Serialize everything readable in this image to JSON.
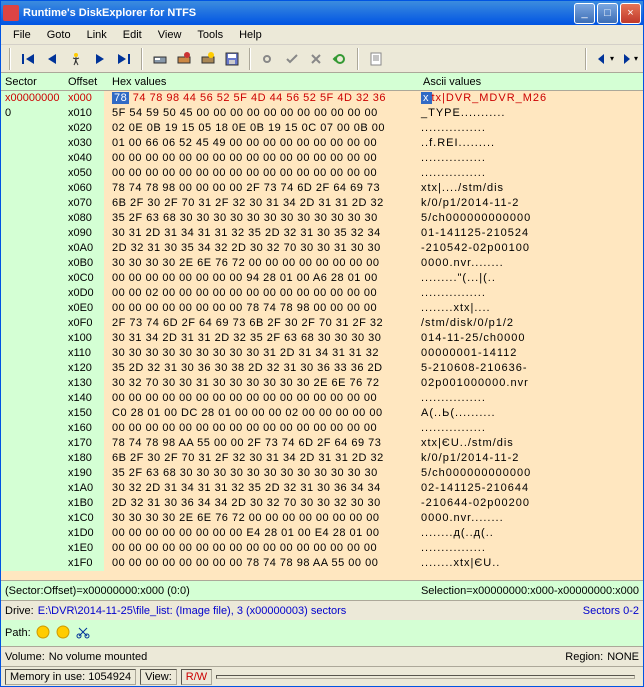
{
  "titlebar": {
    "title": "Runtime's DiskExplorer for NTFS"
  },
  "menu": [
    "File",
    "Goto",
    "Link",
    "Edit",
    "View",
    "Tools",
    "Help"
  ],
  "header": {
    "sector": "Sector",
    "offset": "Offset",
    "hex": "Hex values",
    "ascii": "Ascii values"
  },
  "rows": [
    {
      "sector": "x00000000",
      "offset": "x000",
      "hex_first": "78",
      "hex_rest": " 74 78 98 44 56 52 5F 4D 44 56 52 5F 4D 32 36",
      "ascii_first": "x",
      "ascii_rest": "tx|DVR_MDVR_M26",
      "first": true
    },
    {
      "sector": "0",
      "offset": "x010",
      "hex": "5F 54 59 50 45 00 00 00 00 00 00 00 00 00 00 00",
      "ascii": "_TYPE..........."
    },
    {
      "sector": "",
      "offset": "x020",
      "hex": "02 0E 0B 19 15 05 18 0E 0B 19 15 0C 07 00 0B 00",
      "ascii": "................"
    },
    {
      "sector": "",
      "offset": "x030",
      "hex": "01 00 66 06 52 45 49 00 00 00 00 00 00 00 00 00",
      "ascii": "..f.REI........."
    },
    {
      "sector": "",
      "offset": "x040",
      "hex": "00 00 00 00 00 00 00 00 00 00 00 00 00 00 00 00",
      "ascii": "................"
    },
    {
      "sector": "",
      "offset": "x050",
      "hex": "00 00 00 00 00 00 00 00 00 00 00 00 00 00 00 00",
      "ascii": "................"
    },
    {
      "sector": "",
      "offset": "x060",
      "hex": "78 74 78 98 00 00 00 00 2F 73 74 6D 2F 64 69 73",
      "ascii": "xtx|..../stm/dis"
    },
    {
      "sector": "",
      "offset": "x070",
      "hex": "6B 2F 30 2F 70 31 2F 32 30 31 34 2D 31 31 2D 32",
      "ascii": "k/0/p1/2014-11-2"
    },
    {
      "sector": "",
      "offset": "x080",
      "hex": "35 2F 63 68 30 30 30 30 30 30 30 30 30 30 30 30",
      "ascii": "5/ch000000000000"
    },
    {
      "sector": "",
      "offset": "x090",
      "hex": "30 31 2D 31 34 31 31 32 35 2D 32 31 30 35 32 34",
      "ascii": "01-141125-210524"
    },
    {
      "sector": "",
      "offset": "x0A0",
      "hex": "2D 32 31 30 35 34 32 2D 30 32 70 30 30 31 30 30",
      "ascii": "-210542-02p00100"
    },
    {
      "sector": "",
      "offset": "x0B0",
      "hex": "30 30 30 30 2E 6E 76 72 00 00 00 00 00 00 00 00",
      "ascii": "0000.nvr........"
    },
    {
      "sector": "",
      "offset": "x0C0",
      "hex": "00 00 00 00 00 00 00 00 94 28 01 00 A6 28 01 00",
      "ascii": ".........\"(...|(.."
    },
    {
      "sector": "",
      "offset": "x0D0",
      "hex": "00 00 02 00 00 00 00 00 00 00 00 00 00 00 00 00",
      "ascii": "................"
    },
    {
      "sector": "",
      "offset": "x0E0",
      "hex": "00 00 00 00 00 00 00 00 78 74 78 98 00 00 00 00",
      "ascii": "........xtx|...."
    },
    {
      "sector": "",
      "offset": "x0F0",
      "hex": "2F 73 74 6D 2F 64 69 73 6B 2F 30 2F 70 31 2F 32",
      "ascii": "/stm/disk/0/p1/2"
    },
    {
      "sector": "",
      "offset": "x100",
      "hex": "30 31 34 2D 31 31 2D 32 35 2F 63 68 30 30 30 30",
      "ascii": "014-11-25/ch0000"
    },
    {
      "sector": "",
      "offset": "x110",
      "hex": "30 30 30 30 30 30 30 30 30 31 2D 31 34 31 31 32",
      "ascii": "00000001-14112"
    },
    {
      "sector": "",
      "offset": "x120",
      "hex": "35 2D 32 31 30 36 30 38 2D 32 31 30 36 33 36 2D",
      "ascii": "5-210608-210636-"
    },
    {
      "sector": "",
      "offset": "x130",
      "hex": "30 32 70 30 30 31 30 30 30 30 30 30 2E 6E 76 72",
      "ascii": "02p001000000.nvr"
    },
    {
      "sector": "",
      "offset": "x140",
      "hex": "00 00 00 00 00 00 00 00 00 00 00 00 00 00 00 00",
      "ascii": "................"
    },
    {
      "sector": "",
      "offset": "x150",
      "hex": "C0 28 01 00 DC 28 01 00 00 00 02 00 00 00 00 00",
      "ascii": "A(..Ь(.........."
    },
    {
      "sector": "",
      "offset": "x160",
      "hex": "00 00 00 00 00 00 00 00 00 00 00 00 00 00 00 00",
      "ascii": "................"
    },
    {
      "sector": "",
      "offset": "x170",
      "hex": "78 74 78 98 AA 55 00 00 2F 73 74 6D 2F 64 69 73",
      "ascii": "xtx|ЄU../stm/dis"
    },
    {
      "sector": "",
      "offset": "x180",
      "hex": "6B 2F 30 2F 70 31 2F 32 30 31 34 2D 31 31 2D 32",
      "ascii": "k/0/p1/2014-11-2"
    },
    {
      "sector": "",
      "offset": "x190",
      "hex": "35 2F 63 68 30 30 30 30 30 30 30 30 30 30 30 30",
      "ascii": "5/ch000000000000"
    },
    {
      "sector": "",
      "offset": "x1A0",
      "hex": "30 32 2D 31 34 31 31 32 35 2D 32 31 30 36 34 34",
      "ascii": "02-141125-210644"
    },
    {
      "sector": "",
      "offset": "x1B0",
      "hex": "2D 32 31 30 36 34 34 2D 30 32 70 30 30 32 30 30",
      "ascii": "-210644-02p00200"
    },
    {
      "sector": "",
      "offset": "x1C0",
      "hex": "30 30 30 30 2E 6E 76 72 00 00 00 00 00 00 00 00",
      "ascii": "0000.nvr........"
    },
    {
      "sector": "",
      "offset": "x1D0",
      "hex": "00 00 00 00 00 00 00 00 E4 28 01 00 E4 28 01 00",
      "ascii": "........д(..д(.."
    },
    {
      "sector": "",
      "offset": "x1E0",
      "hex": "00 00 00 00 00 00 00 00 00 00 00 00 00 00 00 00",
      "ascii": "................"
    },
    {
      "sector": "",
      "offset": "x1F0",
      "hex": "00 00 00 00 00 00 00 00 78 74 78 98 AA 55 00 00",
      "ascii": "........xtx|ЄU.."
    }
  ],
  "status": {
    "left": "(Sector:Offset)=x00000000:x000 (0:0)",
    "right": "Selection=x00000000:x000-x00000000:x000"
  },
  "drive": {
    "label": "Drive:",
    "value": "E:\\DVR\\2014-11-25\\file_list: (Image file), 3 (x00000003) sectors",
    "right": "Sectors 0-2"
  },
  "path": {
    "label": "Path:"
  },
  "volume": {
    "label": "Volume:",
    "value": "No volume mounted",
    "region": "Region:",
    "region_value": "NONE"
  },
  "mem": {
    "label": "Memory in use:",
    "value": "1054924",
    "view_label": "View:",
    "rw": "R/W"
  },
  "colors": {
    "titlebar_start": "#3c8cde",
    "titlebar_end": "#0054e3",
    "bg": "#ece9d8",
    "hex_bg": "#ffe7c0",
    "green_bg": "#d4ffd4",
    "sel_bg": "#316ac5",
    "red_text": "#c00",
    "link": "#0000cc"
  }
}
